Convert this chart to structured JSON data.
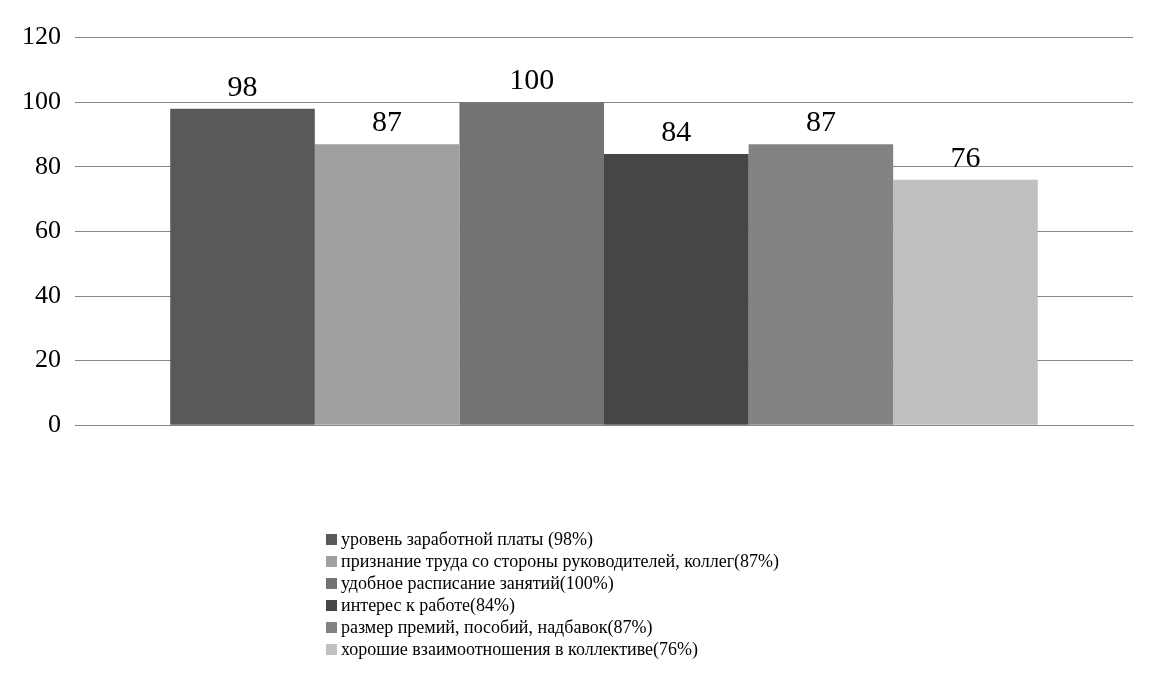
{
  "chart_data": {
    "type": "bar",
    "categories": [
      null
    ],
    "series": [
      {
        "name": "уровень заработной платы (98%)",
        "color": "#595959",
        "values": [
          98
        ]
      },
      {
        "name": "признание труда со стороны руководителей, коллег(87%)",
        "color": "#a0a0a0",
        "values": [
          87
        ]
      },
      {
        "name": "удобное расписание занятий(100%)",
        "color": "#737373",
        "values": [
          100
        ]
      },
      {
        "name": "интерес к работе(84%)",
        "color": "#464646",
        "values": [
          84
        ]
      },
      {
        "name": "размер премий, пособий, надбавок(87%)",
        "color": "#838383",
        "values": [
          87
        ]
      },
      {
        "name": "хорошие взаимоотношения в коллективе(76%)",
        "color": "#c0c0c0",
        "values": [
          76
        ]
      }
    ],
    "ylim": [
      0,
      120
    ],
    "yticks": [
      0,
      20,
      40,
      60,
      80,
      100,
      120
    ],
    "grid": "y",
    "legend": "bottom",
    "data_labels": true
  }
}
